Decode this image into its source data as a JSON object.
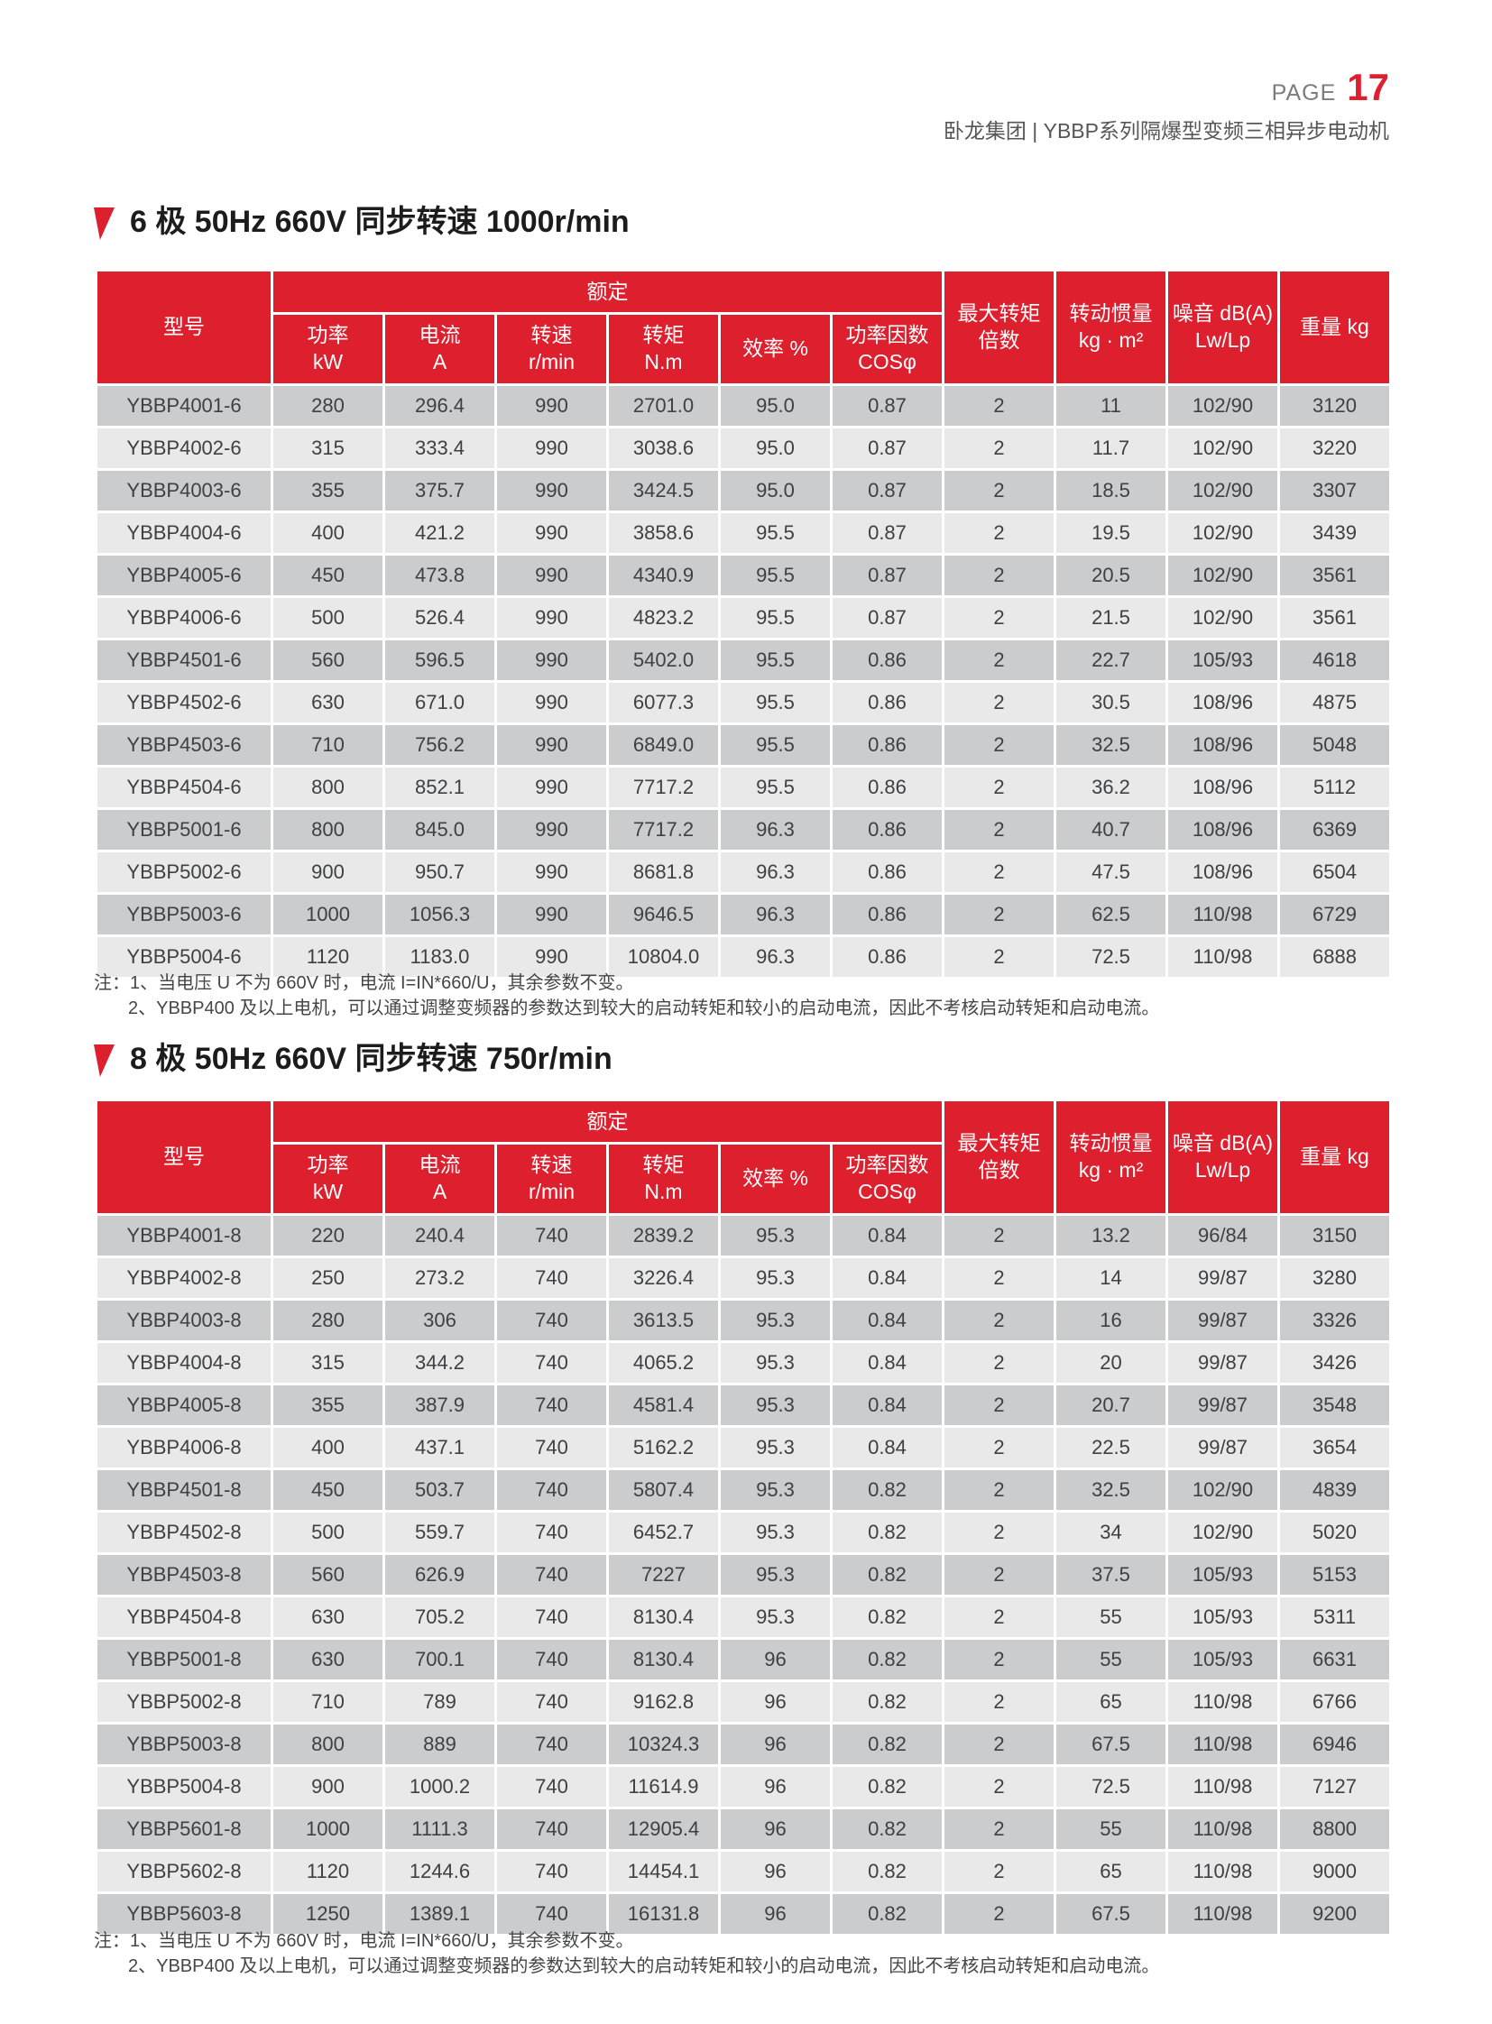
{
  "page": {
    "page_label": "PAGE",
    "page_number": "17",
    "company_line": "卧龙集团 | YBBP系列隔爆型变频三相异步电动机",
    "colors": {
      "accent_red": "#DE1F2E",
      "row_dark": "#CBCCCD",
      "row_light": "#E9E9EA",
      "header_text": "#FFFFFF"
    }
  },
  "sections": [
    {
      "title": "6 极 50Hz 660V 同步转速 1000r/min",
      "table": {
        "col_model": "型号",
        "group_rated": "额定",
        "sub_cols": [
          "功率\nkW",
          "电流\nA",
          "转速\nr/min",
          "转矩\nN.m",
          "效率 %",
          "功率因数\nCOSφ"
        ],
        "col_max_torque": "最大转矩\n倍数",
        "col_inertia": "转动惯量\nkg · m²",
        "col_noise": "噪音 dB(A)\nLw/Lp",
        "col_weight": "重量 kg",
        "rows": [
          [
            "YBBP4001-6",
            "280",
            "296.4",
            "990",
            "2701.0",
            "95.0",
            "0.87",
            "2",
            "11",
            "102/90",
            "3120"
          ],
          [
            "YBBP4002-6",
            "315",
            "333.4",
            "990",
            "3038.6",
            "95.0",
            "0.87",
            "2",
            "11.7",
            "102/90",
            "3220"
          ],
          [
            "YBBP4003-6",
            "355",
            "375.7",
            "990",
            "3424.5",
            "95.0",
            "0.87",
            "2",
            "18.5",
            "102/90",
            "3307"
          ],
          [
            "YBBP4004-6",
            "400",
            "421.2",
            "990",
            "3858.6",
            "95.5",
            "0.87",
            "2",
            "19.5",
            "102/90",
            "3439"
          ],
          [
            "YBBP4005-6",
            "450",
            "473.8",
            "990",
            "4340.9",
            "95.5",
            "0.87",
            "2",
            "20.5",
            "102/90",
            "3561"
          ],
          [
            "YBBP4006-6",
            "500",
            "526.4",
            "990",
            "4823.2",
            "95.5",
            "0.87",
            "2",
            "21.5",
            "102/90",
            "3561"
          ],
          [
            "YBBP4501-6",
            "560",
            "596.5",
            "990",
            "5402.0",
            "95.5",
            "0.86",
            "2",
            "22.7",
            "105/93",
            "4618"
          ],
          [
            "YBBP4502-6",
            "630",
            "671.0",
            "990",
            "6077.3",
            "95.5",
            "0.86",
            "2",
            "30.5",
            "108/96",
            "4875"
          ],
          [
            "YBBP4503-6",
            "710",
            "756.2",
            "990",
            "6849.0",
            "95.5",
            "0.86",
            "2",
            "32.5",
            "108/96",
            "5048"
          ],
          [
            "YBBP4504-6",
            "800",
            "852.1",
            "990",
            "7717.2",
            "95.5",
            "0.86",
            "2",
            "36.2",
            "108/96",
            "5112"
          ],
          [
            "YBBP5001-6",
            "800",
            "845.0",
            "990",
            "7717.2",
            "96.3",
            "0.86",
            "2",
            "40.7",
            "108/96",
            "6369"
          ],
          [
            "YBBP5002-6",
            "900",
            "950.7",
            "990",
            "8681.8",
            "96.3",
            "0.86",
            "2",
            "47.5",
            "108/96",
            "6504"
          ],
          [
            "YBBP5003-6",
            "1000",
            "1056.3",
            "990",
            "9646.5",
            "96.3",
            "0.86",
            "2",
            "62.5",
            "110/98",
            "6729"
          ],
          [
            "YBBP5004-6",
            "1120",
            "1183.0",
            "990",
            "10804.0",
            "96.3",
            "0.86",
            "2",
            "72.5",
            "110/98",
            "6888"
          ]
        ]
      },
      "notes": [
        "注：1、当电压 U 不为 660V 时，电流 I=IN*660/U，其余参数不变。",
        "2、YBBP400 及以上电机，可以通过调整变频器的参数达到较大的启动转矩和较小的启动电流，因此不考核启动转矩和启动电流。"
      ]
    },
    {
      "title": "8 极 50Hz 660V 同步转速 750r/min",
      "table": {
        "col_model": "型号",
        "group_rated": "额定",
        "sub_cols": [
          "功率\nkW",
          "电流\nA",
          "转速\nr/min",
          "转矩\nN.m",
          "效率 %",
          "功率因数\nCOSφ"
        ],
        "col_max_torque": "最大转矩\n倍数",
        "col_inertia": "转动惯量\nkg · m²",
        "col_noise": "噪音 dB(A)\nLw/Lp",
        "col_weight": "重量 kg",
        "rows": [
          [
            "YBBP4001-8",
            "220",
            "240.4",
            "740",
            "2839.2",
            "95.3",
            "0.84",
            "2",
            "13.2",
            "96/84",
            "3150"
          ],
          [
            "YBBP4002-8",
            "250",
            "273.2",
            "740",
            "3226.4",
            "95.3",
            "0.84",
            "2",
            "14",
            "99/87",
            "3280"
          ],
          [
            "YBBP4003-8",
            "280",
            "306",
            "740",
            "3613.5",
            "95.3",
            "0.84",
            "2",
            "16",
            "99/87",
            "3326"
          ],
          [
            "YBBP4004-8",
            "315",
            "344.2",
            "740",
            "4065.2",
            "95.3",
            "0.84",
            "2",
            "20",
            "99/87",
            "3426"
          ],
          [
            "YBBP4005-8",
            "355",
            "387.9",
            "740",
            "4581.4",
            "95.3",
            "0.84",
            "2",
            "20.7",
            "99/87",
            "3548"
          ],
          [
            "YBBP4006-8",
            "400",
            "437.1",
            "740",
            "5162.2",
            "95.3",
            "0.84",
            "2",
            "22.5",
            "99/87",
            "3654"
          ],
          [
            "YBBP4501-8",
            "450",
            "503.7",
            "740",
            "5807.4",
            "95.3",
            "0.82",
            "2",
            "32.5",
            "102/90",
            "4839"
          ],
          [
            "YBBP4502-8",
            "500",
            "559.7",
            "740",
            "6452.7",
            "95.3",
            "0.82",
            "2",
            "34",
            "102/90",
            "5020"
          ],
          [
            "YBBP4503-8",
            "560",
            "626.9",
            "740",
            "7227",
            "95.3",
            "0.82",
            "2",
            "37.5",
            "105/93",
            "5153"
          ],
          [
            "YBBP4504-8",
            "630",
            "705.2",
            "740",
            "8130.4",
            "95.3",
            "0.82",
            "2",
            "55",
            "105/93",
            "5311"
          ],
          [
            "YBBP5001-8",
            "630",
            "700.1",
            "740",
            "8130.4",
            "96",
            "0.82",
            "2",
            "55",
            "105/93",
            "6631"
          ],
          [
            "YBBP5002-8",
            "710",
            "789",
            "740",
            "9162.8",
            "96",
            "0.82",
            "2",
            "65",
            "110/98",
            "6766"
          ],
          [
            "YBBP5003-8",
            "800",
            "889",
            "740",
            "10324.3",
            "96",
            "0.82",
            "2",
            "67.5",
            "110/98",
            "6946"
          ],
          [
            "YBBP5004-8",
            "900",
            "1000.2",
            "740",
            "11614.9",
            "96",
            "0.82",
            "2",
            "72.5",
            "110/98",
            "7127"
          ],
          [
            "YBBP5601-8",
            "1000",
            "1111.3",
            "740",
            "12905.4",
            "96",
            "0.82",
            "2",
            "55",
            "110/98",
            "8800"
          ],
          [
            "YBBP5602-8",
            "1120",
            "1244.6",
            "740",
            "14454.1",
            "96",
            "0.82",
            "2",
            "65",
            "110/98",
            "9000"
          ],
          [
            "YBBP5603-8",
            "1250",
            "1389.1",
            "740",
            "16131.8",
            "96",
            "0.82",
            "2",
            "67.5",
            "110/98",
            "9200"
          ]
        ]
      },
      "notes": [
        "注：1、当电压 U 不为 660V 时，电流 I=IN*660/U，其余参数不变。",
        "2、YBBP400 及以上电机，可以通过调整变频器的参数达到较大的启动转矩和较小的启动电流，因此不考核启动转矩和启动电流。"
      ]
    }
  ]
}
